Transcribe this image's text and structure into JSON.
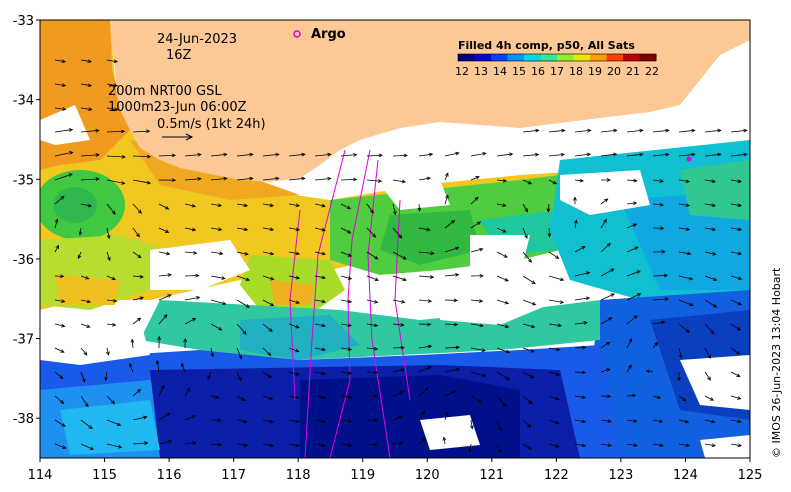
{
  "map": {
    "x_ticks": [
      "114",
      "115",
      "116",
      "117",
      "118",
      "119",
      "120",
      "121",
      "122",
      "123",
      "124",
      "125"
    ],
    "y_ticks": [
      "-33",
      "-34",
      "-35",
      "-36",
      "-37",
      "-38"
    ],
    "x_range": [
      114,
      125
    ],
    "y_range": [
      -38.5,
      -33
    ]
  },
  "annotations": {
    "date": "24-Jun-2023",
    "hour": "16Z",
    "line1": "200m  NRT00 GSL",
    "line2": "1000m23-Jun 06:00Z",
    "scale": "0.5m/s (1kt 24h)"
  },
  "legend": {
    "argo_label": "Argo",
    "argo_color": "#e000e0"
  },
  "colorbar": {
    "title": "Filled 4h comp, p50, All Sats",
    "labels": [
      "12",
      "13",
      "14",
      "15",
      "16",
      "17",
      "18",
      "19",
      "20",
      "21",
      "22"
    ],
    "colors": [
      "#00007f",
      "#0000d0",
      "#0040ff",
      "#0090ff",
      "#00d8e8",
      "#30e890",
      "#90ee30",
      "#e8e800",
      "#ffa000",
      "#ff4000",
      "#c00000",
      "#800000"
    ]
  },
  "copyright": "© IMOS 26-Jun-2023 13:04 Hobart",
  "colors": {
    "land": "#fbc896",
    "track": "#e000e0",
    "arrow": "#000000"
  }
}
